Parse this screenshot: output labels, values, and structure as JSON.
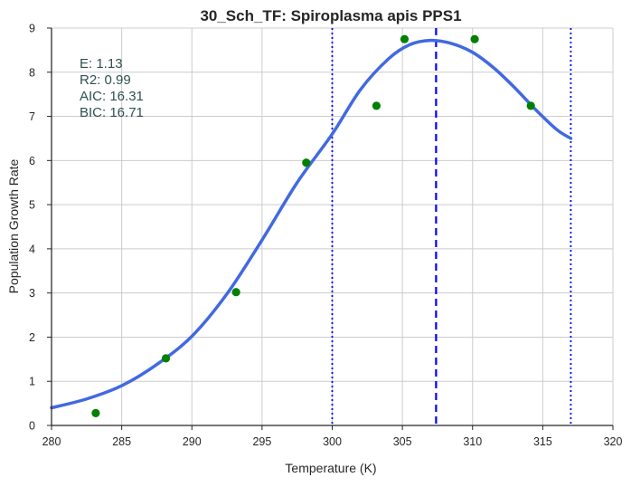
{
  "chart_data": {
    "type": "line",
    "title": "30_Sch_TF: Spiroplasma apis PPS1",
    "xlabel": "Temperature (K)",
    "ylabel": "Population Growth Rate",
    "xlim": [
      280,
      320
    ],
    "ylim": [
      0,
      9
    ],
    "xticks": [
      280,
      285,
      290,
      295,
      300,
      305,
      310,
      315,
      320
    ],
    "yticks": [
      0,
      1,
      2,
      3,
      4,
      5,
      6,
      7,
      8,
      9
    ],
    "grid": true,
    "annotations": [
      "E:  1.13",
      "R2:  0.99",
      "AIC: 16.31",
      "BIC: 16.71"
    ],
    "series": [
      {
        "kind": "scatter",
        "color": "#008000",
        "x": [
          283.15,
          288.15,
          293.15,
          298.15,
          303.15,
          305.15,
          310.15,
          314.15
        ],
        "y": [
          0.28,
          1.52,
          3.02,
          5.95,
          7.24,
          8.75,
          8.75,
          7.24
        ]
      },
      {
        "kind": "line",
        "color": "#4169e1",
        "x": [
          280.0,
          282.5,
          285.0,
          287.5,
          290.0,
          292.5,
          295.0,
          297.5,
          300.0,
          302.0,
          304.0,
          305.5,
          307.0,
          308.5,
          310.0,
          311.5,
          313.0,
          314.5,
          316.0,
          317.0
        ],
        "y": [
          0.4,
          0.6,
          0.9,
          1.38,
          2.02,
          2.98,
          4.2,
          5.5,
          6.6,
          7.6,
          8.3,
          8.62,
          8.72,
          8.65,
          8.45,
          8.1,
          7.65,
          7.15,
          6.7,
          6.5
        ]
      }
    ],
    "vlines": [
      {
        "x": 300.0,
        "style": "dotted",
        "color": "#0000ff"
      },
      {
        "x": 307.4,
        "style": "dashed",
        "color": "#0000ff"
      },
      {
        "x": 317.0,
        "style": "dotted",
        "color": "#0000ff"
      }
    ]
  }
}
